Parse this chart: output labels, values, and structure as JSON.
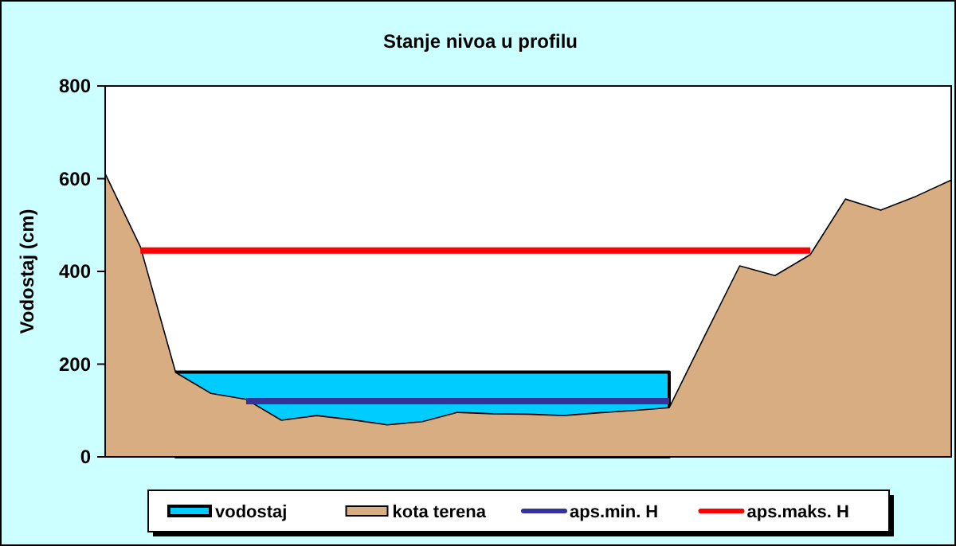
{
  "chart_data": {
    "type": "area",
    "title": "Stanje nivoa u profilu",
    "ylabel": "Vodostaj (cm)",
    "categories": [
      null,
      null,
      null,
      null,
      null,
      null,
      null,
      null,
      null,
      null,
      null,
      null,
      null,
      null,
      null,
      null,
      null,
      null,
      null,
      null,
      null,
      null,
      null,
      null,
      null
    ],
    "series": [
      {
        "name": "vodostaj",
        "color": "#00ccff",
        "values": [
          null,
          null,
          183,
          183,
          183,
          183,
          183,
          183,
          183,
          183,
          183,
          183,
          183,
          183,
          183,
          183,
          183,
          null,
          null,
          null,
          null,
          null,
          null,
          null,
          null
        ]
      },
      {
        "name": "kota terena",
        "color": "#d8ad82",
        "values": [
          611,
          453,
          182,
          137,
          124,
          79,
          89,
          80,
          69,
          76,
          96,
          93,
          92,
          89,
          95,
          100,
          106,
          260,
          412,
          391,
          436,
          556,
          532,
          562,
          597
        ]
      },
      {
        "name": "aps.min. H",
        "type": "line",
        "color": "#333399",
        "values": [
          null,
          null,
          null,
          null,
          120,
          120,
          120,
          120,
          120,
          120,
          120,
          120,
          120,
          120,
          120,
          120,
          120,
          null,
          null,
          null,
          null,
          null,
          null,
          null,
          null
        ]
      },
      {
        "name": "aps.maks. H",
        "type": "line",
        "color": "#ff0000",
        "values": [
          null,
          445,
          445,
          445,
          445,
          445,
          445,
          445,
          445,
          445,
          445,
          445,
          445,
          445,
          445,
          445,
          445,
          445,
          445,
          445,
          445,
          null,
          null,
          null,
          null
        ]
      }
    ],
    "ylim": [
      0,
      800
    ],
    "yticks": [
      0,
      200,
      400,
      600,
      800
    ],
    "grid": false,
    "legend": "bottom"
  }
}
